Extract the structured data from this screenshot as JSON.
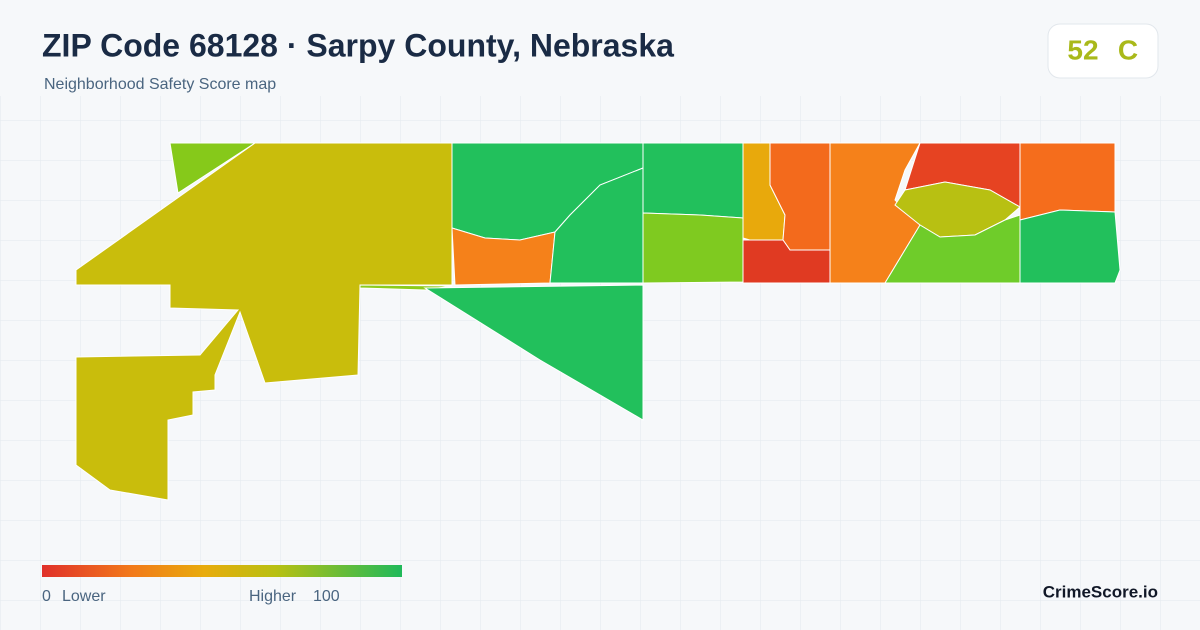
{
  "header": {
    "title": "ZIP Code 68128 · Sarpy County, Nebraska",
    "subtitle": "Neighborhood Safety Score map"
  },
  "badge": {
    "score": 52,
    "grade": "C"
  },
  "legend": {
    "min": 0,
    "min_label": "Lower",
    "max_label": "Higher",
    "max": 100
  },
  "footer": {
    "brand": "CrimeScore.io"
  }
}
